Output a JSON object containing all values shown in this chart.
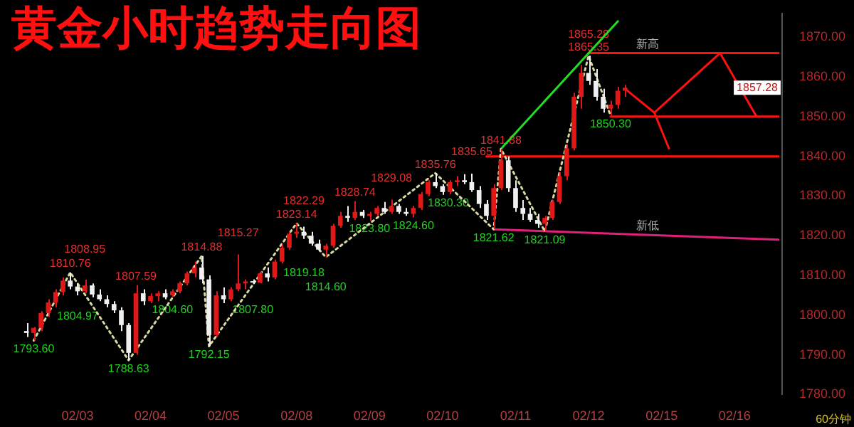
{
  "chart_data": {
    "type": "candlestick",
    "title": "黄金小时趋势走向图",
    "categories": [
      null,
      null,
      null,
      null,
      null,
      null,
      null,
      "02/03",
      null,
      null,
      null,
      null,
      null,
      null,
      null,
      null,
      null,
      "02/04",
      null,
      null,
      null,
      null,
      null,
      null,
      null,
      null,
      null,
      "02/05",
      null,
      null,
      null,
      null,
      null,
      null,
      null,
      null,
      null,
      "02/08",
      null,
      null,
      null,
      null,
      null,
      null,
      null,
      null,
      null,
      "02/09",
      null,
      null,
      null,
      null,
      null,
      null,
      null,
      null,
      null,
      "02/10",
      null,
      null,
      null,
      null,
      null,
      null,
      null,
      null,
      null,
      "02/11",
      null,
      null,
      null,
      null,
      null,
      null,
      null,
      null,
      null,
      "02/12",
      null,
      null,
      null,
      null,
      null,
      null,
      null,
      null,
      null,
      "02/15",
      null,
      null,
      null,
      null,
      null,
      null,
      null,
      null,
      null,
      "02/16",
      null,
      null,
      null,
      null,
      null,
      null
    ],
    "ohlc": [
      [
        1796,
        1798,
        1794.5,
        1795.5
      ],
      [
        1795.5,
        1797,
        1793.6,
        1796.8
      ],
      [
        1796.8,
        1801,
        1796,
        1800.5
      ],
      [
        1800.5,
        1804,
        1799.5,
        1803.2
      ],
      [
        1803.2,
        1806.5,
        1802,
        1805.8
      ],
      [
        1805.8,
        1809.5,
        1805,
        1808.7
      ],
      [
        1808.7,
        1810.76,
        1806.5,
        1807.2
      ],
      [
        1807.2,
        1808,
        1804.97,
        1806
      ],
      [
        1806,
        1808.95,
        1805.5,
        1807.5
      ],
      [
        1807.5,
        1808,
        1804.5,
        1805.2
      ],
      [
        1805.2,
        1806.5,
        1803.5,
        1804
      ],
      [
        1804,
        1805,
        1802,
        1802.8
      ],
      [
        1802.8,
        1803.5,
        1800.5,
        1801.2
      ],
      [
        1801.2,
        1802,
        1796,
        1797.5
      ],
      [
        1797.5,
        1798,
        1788.63,
        1790.5
      ],
      [
        1790.5,
        1807.59,
        1790,
        1805.5
      ],
      [
        1805.5,
        1806.5,
        1802.5,
        1803.5
      ],
      [
        1803.5,
        1805.5,
        1803,
        1804.8
      ],
      [
        1804.8,
        1806,
        1803.5,
        1805.5
      ],
      [
        1805.5,
        1806.5,
        1804,
        1804.5
      ],
      [
        1805,
        1806.5,
        1804.6,
        1806
      ],
      [
        1806,
        1808.5,
        1805.5,
        1808
      ],
      [
        1808,
        1811,
        1807.5,
        1810.5
      ],
      [
        1810.5,
        1813.5,
        1809.5,
        1812
      ],
      [
        1812,
        1814.88,
        1808,
        1809
      ],
      [
        1809,
        1810,
        1792.15,
        1795
      ],
      [
        1795,
        1806,
        1794.5,
        1805
      ],
      [
        1805,
        1807,
        1803,
        1804
      ],
      [
        1804,
        1807,
        1803.5,
        1806.5
      ],
      [
        1806.5,
        1815.27,
        1806,
        1808
      ],
      [
        1808,
        1809,
        1806.5,
        1808.5
      ],
      [
        1808.5,
        1809,
        1807.8,
        1808.2
      ],
      [
        1808.2,
        1811,
        1808,
        1810.5
      ],
      [
        1810.5,
        1812,
        1808.5,
        1809.5
      ],
      [
        1809.5,
        1814,
        1809,
        1813.5
      ],
      [
        1813.5,
        1818,
        1813,
        1817
      ],
      [
        1817,
        1821,
        1816.5,
        1820.5
      ],
      [
        1820.5,
        1823.14,
        1819.5,
        1821
      ],
      [
        1821,
        1822.29,
        1819.18,
        1820
      ],
      [
        1820,
        1821,
        1817.5,
        1818
      ],
      [
        1818,
        1819,
        1816,
        1816.5
      ],
      [
        1816.5,
        1818,
        1814.6,
        1817.5
      ],
      [
        1817.5,
        1823,
        1817,
        1822.5
      ],
      [
        1822.5,
        1826,
        1822,
        1825
      ],
      [
        1825,
        1827.5,
        1823.5,
        1824.5
      ],
      [
        1824.5,
        1828.74,
        1824,
        1826
      ],
      [
        1826,
        1826.5,
        1824.5,
        1825
      ],
      [
        1825,
        1826,
        1823.8,
        1825.5
      ],
      [
        1825.5,
        1827.5,
        1825,
        1827
      ],
      [
        1827,
        1828.5,
        1825.5,
        1826
      ],
      [
        1826,
        1829.08,
        1825.5,
        1827.5
      ],
      [
        1827.5,
        1828,
        1825.5,
        1826
      ],
      [
        1826,
        1827,
        1825,
        1825.5
      ],
      [
        1825.5,
        1827.5,
        1824.6,
        1827
      ],
      [
        1827,
        1831,
        1826.5,
        1830.5
      ],
      [
        1830.5,
        1834,
        1830,
        1833.5
      ],
      [
        1833.5,
        1835.76,
        1832,
        1832.5
      ],
      [
        1832.5,
        1833,
        1830.3,
        1831
      ],
      [
        1831,
        1834,
        1830.5,
        1833.5
      ],
      [
        1833.5,
        1835,
        1832.5,
        1834
      ],
      [
        1834,
        1835.5,
        1833,
        1833.5
      ],
      [
        1833.5,
        1835.65,
        1831,
        1831.5
      ],
      [
        1831.5,
        1832.5,
        1827,
        1828
      ],
      [
        1828,
        1829,
        1824,
        1825
      ],
      [
        1825,
        1833,
        1821.62,
        1832
      ],
      [
        1832,
        1841.88,
        1831.5,
        1839
      ],
      [
        1839,
        1840,
        1831,
        1832
      ],
      [
        1832,
        1834,
        1826,
        1827
      ],
      [
        1827,
        1829,
        1824,
        1825.5
      ],
      [
        1825.5,
        1827,
        1823.5,
        1824
      ],
      [
        1824,
        1825.5,
        1822,
        1823
      ],
      [
        1823,
        1825,
        1821.09,
        1824.5
      ],
      [
        1824.5,
        1829,
        1824,
        1828.5
      ],
      [
        1828.5,
        1836,
        1828,
        1835
      ],
      [
        1835,
        1843,
        1834,
        1842
      ],
      [
        1842,
        1856,
        1841.5,
        1855
      ],
      [
        1855,
        1863,
        1852,
        1861
      ],
      [
        1861,
        1865.35,
        1858,
        1859
      ],
      [
        1859,
        1862,
        1854,
        1855
      ],
      [
        1855,
        1857,
        1851,
        1852
      ],
      [
        1852,
        1854,
        1850.3,
        1853
      ],
      [
        1853,
        1857.5,
        1852,
        1856.5
      ],
      [
        1856.5,
        1858,
        1855,
        1857.28
      ],
      null,
      null,
      null,
      null,
      null,
      null,
      null,
      null,
      null,
      null,
      null,
      null,
      null,
      null,
      null,
      null,
      null,
      null,
      null,
      null,
      null
    ],
    "colors": [
      "#f0f0f0",
      "#e01818",
      "#e01818",
      "#e01818",
      "#e01818",
      "#e01818",
      "#f0f0f0",
      "#f0f0f0",
      "#e01818",
      "#f0f0f0",
      "#f0f0f0",
      "#f0f0f0",
      "#f0f0f0",
      "#f0f0f0",
      "#f0f0f0",
      "#e01818",
      "#f0f0f0",
      "#e01818",
      "#e01818",
      "#f0f0f0",
      "#e01818",
      "#e01818",
      "#e01818",
      "#e01818",
      "#f0f0f0",
      "#f0f0f0",
      "#e01818",
      "#f0f0f0",
      "#e01818",
      "#e01818",
      "#e01818",
      "#f0f0f0",
      "#e01818",
      "#f0f0f0",
      "#e01818",
      "#e01818",
      "#e01818",
      "#e01818",
      "#f0f0f0",
      "#f0f0f0",
      "#f0f0f0",
      "#e01818",
      "#e01818",
      "#e01818",
      "#f0f0f0",
      "#e01818",
      "#f0f0f0",
      "#e01818",
      "#e01818",
      "#f0f0f0",
      "#e01818",
      "#f0f0f0",
      "#f0f0f0",
      "#e01818",
      "#e01818",
      "#e01818",
      "#f0f0f0",
      "#f0f0f0",
      "#e01818",
      "#e01818",
      "#f0f0f0",
      "#f0f0f0",
      "#f0f0f0",
      "#f0f0f0",
      "#e01818",
      "#e01818",
      "#f0f0f0",
      "#f0f0f0",
      "#f0f0f0",
      "#f0f0f0",
      "#f0f0f0",
      "#e01818",
      "#e01818",
      "#e01818",
      "#e01818",
      "#e01818",
      "#e01818",
      "#f0f0f0",
      "#f0f0f0",
      "#f0f0f0",
      "#e01818",
      "#e01818",
      "#e01818",
      null,
      null,
      null,
      null,
      null,
      null,
      null,
      null,
      null,
      null,
      null,
      null,
      null,
      null,
      null,
      null,
      null,
      null,
      null,
      null,
      null
    ],
    "series": [
      {
        "type": "line",
        "color": "#d8d8a0",
        "line_style": "dotted",
        "values": [
          null,
          1793.6,
          null,
          null,
          null,
          null,
          1810.76,
          null,
          null,
          null,
          null,
          null,
          null,
          null,
          1788.63,
          null,
          null,
          null,
          null,
          null,
          null,
          null,
          null,
          null,
          1814.88,
          1792.15,
          null,
          null,
          null,
          null,
          null,
          null,
          null,
          null,
          null,
          null,
          null,
          1823.14,
          null,
          null,
          null,
          1814.6,
          null,
          null,
          null,
          null,
          null,
          null,
          null,
          null,
          null,
          null,
          null,
          null,
          null,
          null,
          1835.76,
          null,
          null,
          null,
          null,
          null,
          null,
          null,
          1821.62,
          1841.88,
          null,
          null,
          null,
          null,
          null,
          1821.09,
          null,
          null,
          null,
          null,
          null,
          1865.35,
          null,
          null,
          1850.3,
          null,
          null,
          null,
          null,
          null,
          null,
          null,
          null,
          null,
          null,
          null,
          null,
          null,
          null,
          null,
          null,
          null,
          null,
          null,
          null,
          null,
          null,
          null
        ]
      },
      {
        "type": "line",
        "color": "#e0207a",
        "values": [
          null,
          null,
          null,
          null,
          null,
          null,
          null,
          null,
          null,
          null,
          null,
          null,
          null,
          null,
          null,
          null,
          null,
          null,
          null,
          null,
          null,
          null,
          null,
          null,
          null,
          null,
          null,
          null,
          null,
          null,
          null,
          null,
          null,
          null,
          null,
          null,
          null,
          null,
          null,
          null,
          null,
          null,
          null,
          null,
          null,
          null,
          null,
          null,
          null,
          null,
          null,
          null,
          null,
          null,
          null,
          null,
          null,
          null,
          null,
          null,
          null,
          null,
          null,
          null,
          1821.62,
          null,
          null,
          null,
          null,
          null,
          null,
          null,
          null,
          null,
          null,
          null,
          null,
          null,
          null,
          null,
          null,
          null,
          null,
          null,
          null,
          null,
          null,
          null,
          null,
          null,
          null,
          null,
          null,
          null,
          null,
          null,
          null,
          null,
          null,
          null,
          null,
          null,
          null,
          1819
        ]
      },
      {
        "type": "line",
        "color": "#22dd22",
        "values": [
          null,
          null,
          null,
          null,
          null,
          null,
          null,
          null,
          null,
          null,
          null,
          null,
          null,
          null,
          null,
          null,
          null,
          null,
          null,
          null,
          null,
          null,
          null,
          null,
          null,
          null,
          null,
          null,
          null,
          null,
          null,
          null,
          null,
          null,
          null,
          null,
          null,
          null,
          null,
          null,
          null,
          null,
          null,
          null,
          null,
          null,
          null,
          null,
          null,
          null,
          null,
          null,
          null,
          null,
          null,
          null,
          null,
          null,
          null,
          null,
          null,
          null,
          null,
          null,
          null,
          1841.88,
          null,
          null,
          null,
          null,
          null,
          null,
          null,
          null,
          null,
          null,
          null,
          null,
          null,
          null,
          null,
          1874,
          null,
          null,
          null,
          null,
          null,
          null,
          null,
          null,
          null,
          null,
          null,
          null,
          null,
          null,
          null,
          null,
          null,
          null,
          null,
          null,
          null,
          null
        ]
      },
      {
        "type": "line",
        "color": "#ff1010",
        "values": [
          null,
          null,
          null,
          null,
          null,
          null,
          null,
          null,
          null,
          null,
          null,
          null,
          null,
          null,
          null,
          null,
          null,
          null,
          null,
          null,
          null,
          null,
          null,
          null,
          null,
          null,
          null,
          null,
          null,
          null,
          null,
          null,
          null,
          null,
          null,
          null,
          null,
          null,
          null,
          null,
          null,
          null,
          null,
          null,
          null,
          null,
          null,
          null,
          null,
          null,
          null,
          null,
          null,
          null,
          null,
          null,
          null,
          null,
          null,
          null,
          null,
          null,
          null,
          null,
          null,
          null,
          null,
          null,
          null,
          null,
          null,
          null,
          null,
          null,
          null,
          null,
          null,
          1866,
          null,
          null,
          null,
          null,
          null,
          null,
          null,
          null,
          null,
          null,
          null,
          null,
          null,
          null,
          null,
          null,
          null,
          null,
          null,
          null,
          null,
          null,
          null,
          null,
          null,
          1866
        ]
      },
      {
        "type": "line",
        "color": "#ff1010",
        "values": [
          null,
          null,
          null,
          null,
          null,
          null,
          null,
          null,
          null,
          null,
          null,
          null,
          null,
          null,
          null,
          null,
          null,
          null,
          null,
          null,
          null,
          null,
          null,
          null,
          null,
          null,
          null,
          null,
          null,
          null,
          null,
          null,
          null,
          null,
          null,
          null,
          null,
          null,
          null,
          null,
          null,
          null,
          null,
          null,
          null,
          null,
          null,
          null,
          null,
          null,
          null,
          null,
          null,
          null,
          null,
          null,
          null,
          null,
          null,
          null,
          null,
          null,
          null,
          null,
          null,
          null,
          null,
          null,
          null,
          null,
          null,
          null,
          null,
          null,
          null,
          null,
          null,
          null,
          null,
          null,
          1850,
          null,
          null,
          null,
          null,
          null,
          null,
          null,
          null,
          null,
          null,
          null,
          null,
          null,
          null,
          null,
          null,
          null,
          null,
          null,
          null,
          null,
          null,
          1850
        ]
      },
      {
        "type": "line",
        "color": "#ff1010",
        "values": [
          null,
          null,
          null,
          null,
          null,
          null,
          null,
          null,
          null,
          null,
          null,
          null,
          null,
          null,
          null,
          null,
          null,
          null,
          null,
          null,
          null,
          null,
          null,
          null,
          null,
          null,
          null,
          null,
          null,
          null,
          null,
          null,
          null,
          null,
          null,
          null,
          null,
          null,
          null,
          null,
          null,
          null,
          null,
          null,
          null,
          null,
          null,
          null,
          null,
          null,
          null,
          null,
          null,
          null,
          null,
          null,
          null,
          null,
          null,
          null,
          null,
          null,
          null,
          1840,
          null,
          null,
          null,
          null,
          null,
          null,
          null,
          null,
          null,
          null,
          null,
          null,
          null,
          null,
          null,
          null,
          null,
          null,
          null,
          null,
          null,
          null,
          null,
          null,
          null,
          null,
          null,
          null,
          null,
          null,
          null,
          null,
          null,
          null,
          null,
          null,
          null,
          null,
          null,
          1840
        ]
      },
      {
        "type": "line",
        "color": "#ff1010",
        "values": [
          null,
          null,
          null,
          null,
          null,
          null,
          null,
          null,
          null,
          null,
          null,
          null,
          null,
          null,
          null,
          null,
          null,
          null,
          null,
          null,
          null,
          null,
          null,
          null,
          null,
          null,
          null,
          null,
          null,
          null,
          null,
          null,
          null,
          null,
          null,
          null,
          null,
          null,
          null,
          null,
          null,
          null,
          null,
          null,
          null,
          null,
          null,
          null,
          null,
          null,
          null,
          null,
          null,
          null,
          null,
          null,
          null,
          null,
          null,
          null,
          null,
          null,
          null,
          null,
          null,
          null,
          null,
          null,
          null,
          null,
          null,
          null,
          null,
          null,
          null,
          null,
          null,
          null,
          null,
          null,
          null,
          null,
          1857,
          null,
          null,
          null,
          1851,
          null,
          null,
          null,
          null,
          null,
          null,
          null,
          null,
          1866,
          null,
          null,
          null,
          null,
          1850,
          null,
          null,
          null
        ]
      },
      {
        "type": "line",
        "color": "#ff1010",
        "values": [
          null,
          null,
          null,
          null,
          null,
          null,
          null,
          null,
          null,
          null,
          null,
          null,
          null,
          null,
          null,
          null,
          null,
          null,
          null,
          null,
          null,
          null,
          null,
          null,
          null,
          null,
          null,
          null,
          null,
          null,
          null,
          null,
          null,
          null,
          null,
          null,
          null,
          null,
          null,
          null,
          null,
          null,
          null,
          null,
          null,
          null,
          null,
          null,
          null,
          null,
          null,
          null,
          null,
          null,
          null,
          null,
          null,
          null,
          null,
          null,
          null,
          null,
          null,
          null,
          null,
          null,
          null,
          null,
          null,
          null,
          null,
          null,
          null,
          null,
          null,
          null,
          null,
          null,
          null,
          null,
          null,
          null,
          null,
          null,
          null,
          null,
          1851,
          null,
          1842,
          null,
          null,
          null,
          null,
          null,
          null,
          null,
          null,
          null,
          null,
          null,
          null,
          null,
          null,
          null
        ]
      }
    ],
    "ylim": [
      1780,
      1876
    ],
    "yticks": [
      {
        "value": 1780,
        "label": "1780.00"
      },
      {
        "value": 1790,
        "label": "1790.00"
      },
      {
        "value": 1800,
        "label": "1800.00"
      },
      {
        "value": 1810,
        "label": "1810.00"
      },
      {
        "value": 1820,
        "label": "1820.00"
      },
      {
        "value": 1830,
        "label": "1830.00"
      },
      {
        "value": 1840,
        "label": "1840.00"
      },
      {
        "value": 1850,
        "label": "1850.00"
      },
      {
        "value": 1860,
        "label": "1860.00"
      },
      {
        "value": 1870,
        "label": "1870.00"
      }
    ],
    "annotations": [
      {
        "text": "1793.60",
        "y": 1793.6
      },
      {
        "text": "1810.76",
        "y": 1810.76
      },
      {
        "text": "1804.97",
        "y": 1804.97
      },
      {
        "text": "1808.95",
        "y": 1808.95
      },
      {
        "text": "1788.63",
        "y": 1788.63
      },
      {
        "text": "1807.59",
        "y": 1807.59
      },
      {
        "text": "1804.60",
        "y": 1804.6
      },
      {
        "text": "1814.88",
        "y": 1814.88
      },
      {
        "text": "1792.15",
        "y": 1792.15
      },
      {
        "text": "1815.27",
        "y": 1815.27
      },
      {
        "text": "1807.80",
        "y": 1807.8
      },
      {
        "text": "1823.14",
        "y": 1823.14
      },
      {
        "text": "1822.29",
        "y": 1822.29
      },
      {
        "text": "1819.18",
        "y": 1819.18
      },
      {
        "text": "1814.60",
        "y": 1814.6
      },
      {
        "text": "1828.74",
        "y": 1828.74
      },
      {
        "text": "1823.80",
        "y": 1823.8
      },
      {
        "text": "1829.08",
        "y": 1829.08
      },
      {
        "text": "1824.60",
        "y": 1824.6
      },
      {
        "text": "1835.76",
        "y": 1835.76
      },
      {
        "text": "1830.30",
        "y": 1830.3
      },
      {
        "text": "1835.65",
        "y": 1835.65
      },
      {
        "text": "1821.62",
        "y": 1821.62
      },
      {
        "text": "1841.88",
        "y": 1841.88
      },
      {
        "text": "1821.09",
        "y": 1821.09
      },
      {
        "text": "1865.35",
        "y": 1865.35
      },
      {
        "text": "1865.28",
        "y": 1865.28
      },
      {
        "text": "1850.30",
        "y": 1850.3
      },
      {
        "text": "新高",
        "y": 1866
      },
      {
        "text": "新低",
        "y": 1820.3
      },
      "1857.28",
      "60分钟"
    ]
  }
}
